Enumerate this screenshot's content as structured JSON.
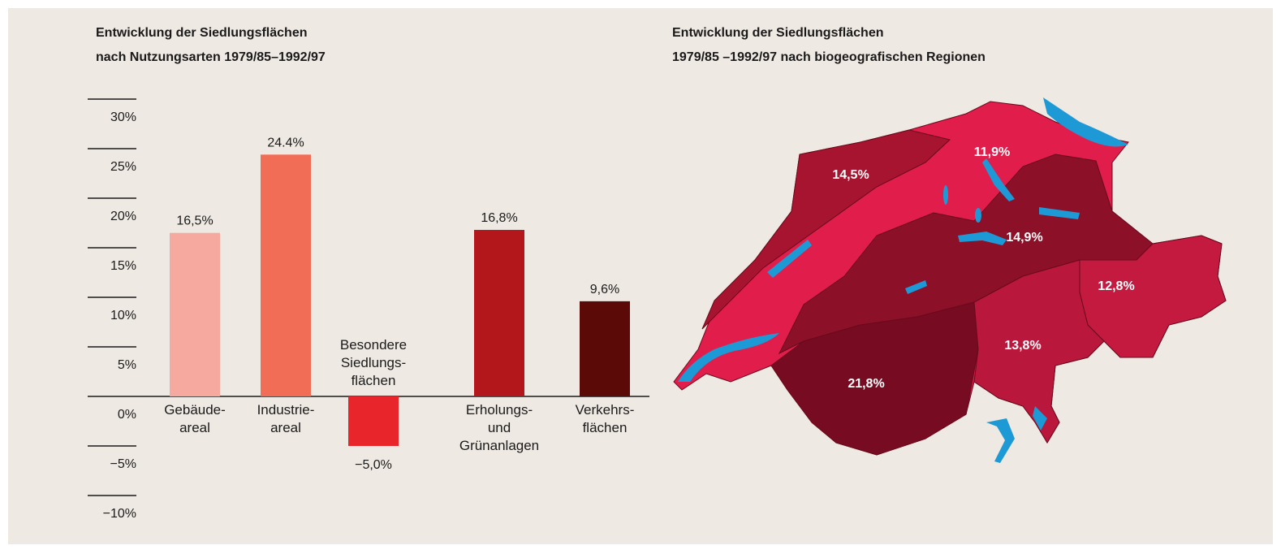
{
  "chart_data": [
    {
      "type": "bar",
      "title": "Entwicklung der Siedlungsflächen",
      "subtitle": "nach Nutzungsarten 1979/85–1992/97",
      "categories": [
        "Gebäude-\nareal",
        "Industrie-\nareal",
        "Besondere\nSiedlungs-\nflächen",
        "Erholungs-\nund\nGrünanlagen",
        "Verkehrs-\nflächen"
      ],
      "values": [
        16.5,
        24.4,
        -5.0,
        16.8,
        9.6
      ],
      "value_labels": [
        "16,5%",
        "24.4%",
        "−5,0%",
        "16,8%",
        "9,6%"
      ],
      "colors": [
        "#f6aa9f",
        "#f26d55",
        "#e8252b",
        "#b3161b",
        "#5c0a08"
      ],
      "ylim": [
        -10,
        30
      ],
      "yticks": [
        {
          "value": 30,
          "label": "30%"
        },
        {
          "value": 25,
          "label": "25%"
        },
        {
          "value": 20,
          "label": "20%"
        },
        {
          "value": 15,
          "label": "15%"
        },
        {
          "value": 10,
          "label": "10%"
        },
        {
          "value": 5,
          "label": "5%"
        },
        {
          "value": 0,
          "label": "0%"
        },
        {
          "value": -5,
          "label": "−5%"
        },
        {
          "value": -10,
          "label": "−10%"
        }
      ]
    },
    {
      "type": "map",
      "title": "Entwicklung der Siedlungsflächen",
      "subtitle": "1979/85 –1992/97 nach biogeografischen Regionen",
      "values": [
        11.9,
        14.5,
        14.9,
        21.8,
        12.8,
        13.8
      ],
      "value_labels": [
        "11,9%",
        "14,5%",
        "14,9%",
        "21,8%",
        "12,8%",
        "13,8%"
      ],
      "colors": [
        "#e01d4b",
        "#a6142f",
        "#8d1029",
        "#760b21",
        "#c41a3f",
        "#b9173b"
      ]
    }
  ]
}
